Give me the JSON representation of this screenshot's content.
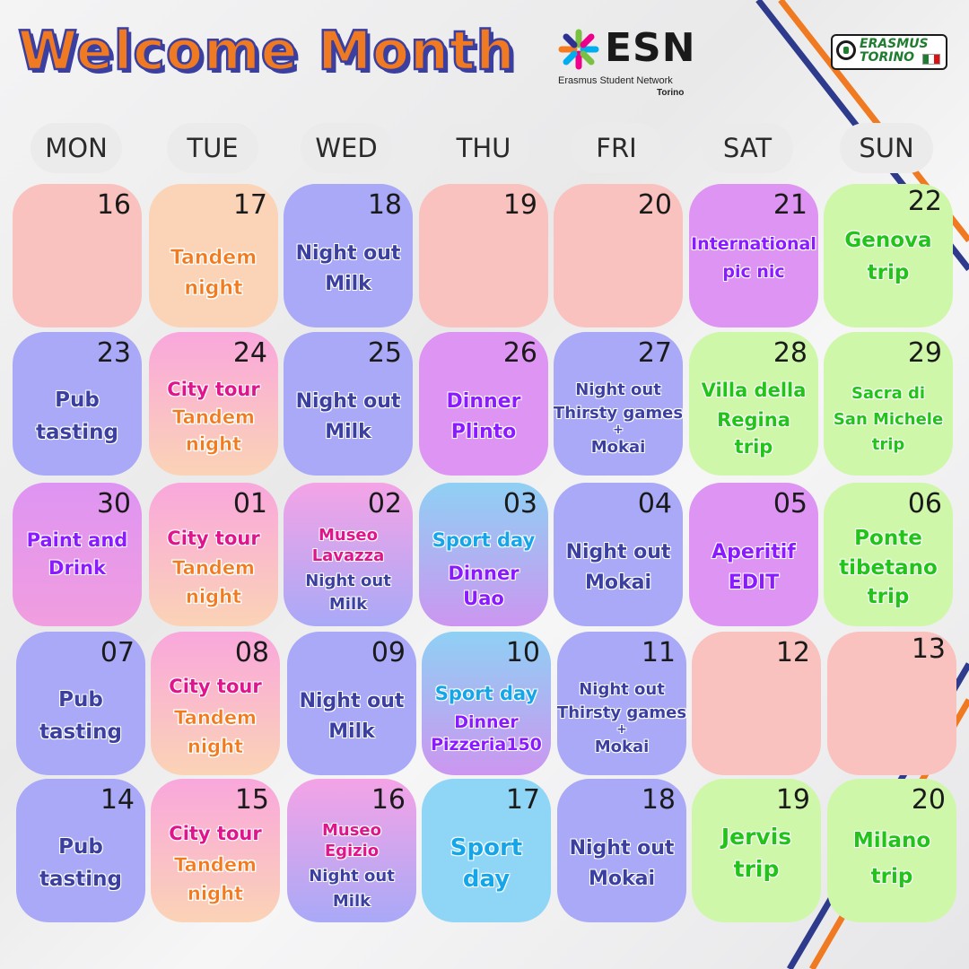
{
  "header": {
    "title": "Welcome Month",
    "esn_name": "ESN",
    "esn_sub": "Erasmus Student Network",
    "esn_city": "Torino",
    "logo2_line1": "ERASMUS",
    "logo2_line2": "TORINO",
    "star_icon": "esn-star-icon"
  },
  "weekdays": [
    "MON",
    "TUE",
    "WED",
    "THU",
    "FRI",
    "SAT",
    "SUN"
  ],
  "colors": {
    "title_orange": "#f07a21",
    "title_outline": "#3b3fa0",
    "stripe_navy": "#2e3a8c",
    "stripe_orange": "#f07a21"
  },
  "weeks": [
    [
      {
        "day": "16",
        "events": []
      },
      {
        "day": "17",
        "events": [
          "Tandem",
          "night"
        ]
      },
      {
        "day": "18",
        "events": [
          "Night out",
          "Milk"
        ]
      },
      {
        "day": "19",
        "events": []
      },
      {
        "day": "20",
        "events": []
      },
      {
        "day": "21",
        "events": [
          "International",
          "pic nic"
        ]
      },
      {
        "day": "22",
        "events": [
          "Genova",
          "trip"
        ]
      }
    ],
    [
      {
        "day": "23",
        "events": [
          "Pub",
          "tasting"
        ]
      },
      {
        "day": "24",
        "events": [
          "City tour",
          "Tandem",
          "night"
        ]
      },
      {
        "day": "25",
        "events": [
          "Night out",
          "Milk"
        ]
      },
      {
        "day": "26",
        "events": [
          "Dinner",
          "Plinto"
        ]
      },
      {
        "day": "27",
        "events": [
          "Night out",
          "Thirsty games",
          "+",
          "Mokai"
        ]
      },
      {
        "day": "28",
        "events": [
          "Villa della",
          "Regina",
          "trip"
        ]
      },
      {
        "day": "29",
        "events": [
          "Sacra di",
          "San Michele",
          "trip"
        ]
      }
    ],
    [
      {
        "day": "30",
        "events": [
          "Paint and",
          "Drink"
        ]
      },
      {
        "day": "01",
        "events": [
          "City tour",
          "Tandem",
          "night"
        ]
      },
      {
        "day": "02",
        "events": [
          "Museo",
          "Lavazza",
          "Night out",
          "Milk"
        ]
      },
      {
        "day": "03",
        "events": [
          "Sport day",
          "Dinner",
          "Uao"
        ]
      },
      {
        "day": "04",
        "events": [
          "Night out",
          "Mokai"
        ]
      },
      {
        "day": "05",
        "events": [
          "Aperitif",
          "EDIT"
        ]
      },
      {
        "day": "06",
        "events": [
          "Ponte",
          "tibetano",
          "trip"
        ]
      }
    ],
    [
      {
        "day": "07",
        "events": [
          "Pub",
          "tasting"
        ]
      },
      {
        "day": "08",
        "events": [
          "City tour",
          "Tandem",
          "night"
        ]
      },
      {
        "day": "09",
        "events": [
          "Night out",
          "Milk"
        ]
      },
      {
        "day": "10",
        "events": [
          "Sport day",
          "Dinner",
          "Pizzeria150"
        ]
      },
      {
        "day": "11",
        "events": [
          "Night out",
          "Thirsty games",
          "+",
          "Mokai"
        ]
      },
      {
        "day": "12",
        "events": []
      },
      {
        "day": "13",
        "events": []
      }
    ],
    [
      {
        "day": "14",
        "events": [
          "Pub",
          "tasting"
        ]
      },
      {
        "day": "15",
        "events": [
          "City tour",
          "Tandem",
          "night"
        ]
      },
      {
        "day": "16",
        "events": [
          "Museo",
          "Egizio",
          "Night out",
          "Milk"
        ]
      },
      {
        "day": "17",
        "events": [
          "Sport",
          "day"
        ]
      },
      {
        "day": "18",
        "events": [
          "Night out",
          "Mokai"
        ]
      },
      {
        "day": "19",
        "events": [
          "Jervis",
          "trip"
        ]
      },
      {
        "day": "20",
        "events": [
          "Milano",
          "trip"
        ]
      }
    ]
  ]
}
